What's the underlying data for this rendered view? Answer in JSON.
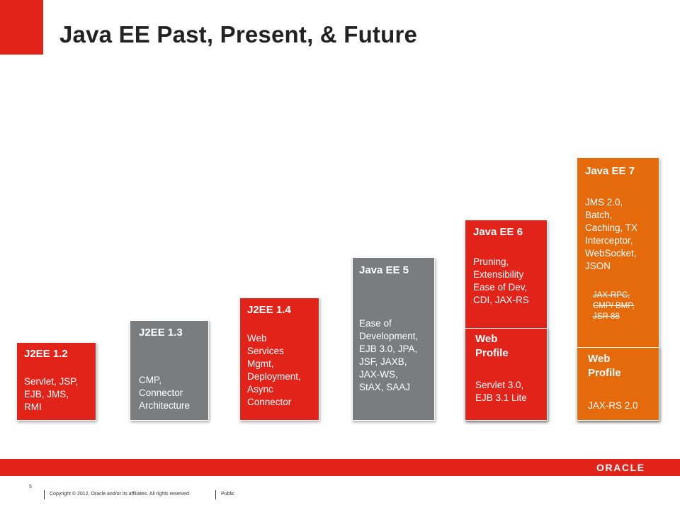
{
  "slide": {
    "title": "Java EE Past, Present, & Future",
    "brand_color": "#e2231a"
  },
  "releases": [
    {
      "name": "J2EE 1.2",
      "lines": [
        "Servlet, JSP,",
        "EJB, JMS,",
        "RMI"
      ]
    },
    {
      "name": "J2EE 1.3",
      "lines": [
        "CMP,",
        "Connector",
        "Architecture"
      ]
    },
    {
      "name": "J2EE 1.4",
      "lines": [
        "Web",
        "Services",
        "Mgmt,",
        "Deployment,",
        "Async",
        "Connector"
      ]
    },
    {
      "name": "Java EE 5",
      "lines": [
        "Ease of",
        "Development,",
        "EJB 3.0, JPA,",
        "JSF, JAXB,",
        "JAX-WS,",
        "StAX, SAAJ"
      ]
    },
    {
      "name": "Java EE 6",
      "lines": [
        "Pruning,",
        "Extensibility",
        "Ease of Dev,",
        "CDI, JAX-RS"
      ],
      "profile": {
        "name_lines": [
          "Web",
          "Profile"
        ],
        "lines": [
          "Servlet 3.0,",
          "EJB 3.1 Lite"
        ]
      }
    },
    {
      "name": "Java EE 7",
      "lines": [
        "JMS 2.0,",
        "Batch,",
        "Caching, TX",
        "Interceptor,",
        "WebSocket,",
        "JSON"
      ],
      "pruned": [
        "JAX-RPC,",
        "CMP/ BMP,",
        "JSR 88"
      ],
      "profile": {
        "name_lines": [
          "Web",
          "Profile"
        ],
        "lines": [
          "JAX-RS 2.0"
        ]
      }
    }
  ],
  "colors": {
    "red": "#e2231a",
    "grey": "#7a7c7d",
    "orange": "#e56a0b"
  },
  "footer": {
    "logo": "ORACLE",
    "page_number": "5",
    "copyright": "Copyright © 2012, Oracle and/or its affiliates. All rights reserved.",
    "classification": "Public"
  }
}
